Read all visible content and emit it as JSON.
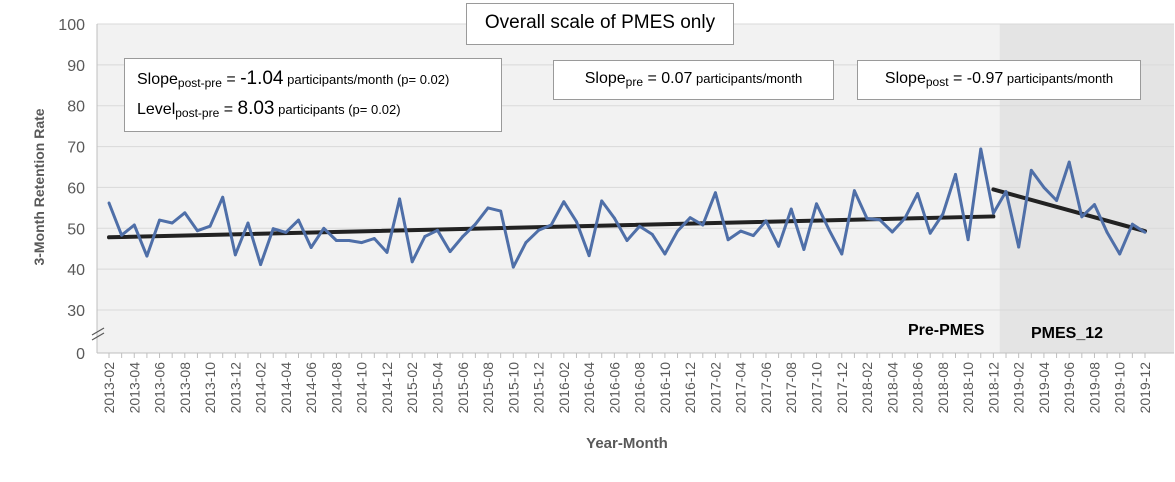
{
  "chart_data": {
    "type": "line",
    "title": "Overall scale of PMES only",
    "xlabel": "Year-Month",
    "ylabel": "3-Month Retention Rate",
    "ylim": [
      0,
      100
    ],
    "y_ticks": [
      "0",
      "30",
      "40",
      "50",
      "60",
      "70",
      "80",
      "90",
      "100"
    ],
    "axis_break": "between 0 and 30",
    "x": [
      "2013-02",
      "2013-03",
      "2013-04",
      "2013-05",
      "2013-06",
      "2013-07",
      "2013-08",
      "2013-09",
      "2013-10",
      "2013-11",
      "2013-12",
      "2014-01",
      "2014-02",
      "2014-03",
      "2014-04",
      "2014-05",
      "2014-06",
      "2014-07",
      "2014-08",
      "2014-09",
      "2014-10",
      "2014-11",
      "2014-12",
      "2015-01",
      "2015-02",
      "2015-03",
      "2015-04",
      "2015-05",
      "2015-06",
      "2015-07",
      "2015-08",
      "2015-09",
      "2015-10",
      "2015-11",
      "2015-12",
      "2016-01",
      "2016-02",
      "2016-03",
      "2016-04",
      "2016-05",
      "2016-06",
      "2016-07",
      "2016-08",
      "2016-09",
      "2016-10",
      "2016-11",
      "2016-12",
      "2017-01",
      "2017-02",
      "2017-03",
      "2017-04",
      "2017-05",
      "2017-06",
      "2017-07",
      "2017-08",
      "2017-09",
      "2017-10",
      "2017-11",
      "2017-12",
      "2018-01",
      "2018-02",
      "2018-03",
      "2018-04",
      "2018-05",
      "2018-06",
      "2018-07",
      "2018-08",
      "2018-09",
      "2018-10",
      "2018-11",
      "2018-12",
      "2019-01",
      "2019-02",
      "2019-03",
      "2019-04",
      "2019-05",
      "2019-06",
      "2019-07",
      "2019-08",
      "2019-09",
      "2019-10",
      "2019-11",
      "2019-12"
    ],
    "x_tick_labels": [
      "2013-02",
      "2013-04",
      "2013-06",
      "2013-08",
      "2013-10",
      "2013-12",
      "2014-02",
      "2014-04",
      "2014-06",
      "2014-08",
      "2014-10",
      "2014-12",
      "2015-02",
      "2015-04",
      "2015-06",
      "2015-08",
      "2015-10",
      "2015-12",
      "2016-02",
      "2016-04",
      "2016-06",
      "2016-08",
      "2016-10",
      "2016-12",
      "2017-02",
      "2017-04",
      "2017-06",
      "2017-08",
      "2017-10",
      "2017-12",
      "2018-02",
      "2018-04",
      "2018-06",
      "2018-08",
      "2018-10",
      "2018-12",
      "2019-02",
      "2019-04",
      "2019-06",
      "2019-08",
      "2019-10",
      "2019-12"
    ],
    "series": [
      {
        "color": "#4f6fa8",
        "values": [
          56.2,
          48.3,
          50.8,
          43.2,
          52,
          51.3,
          53.8,
          49.4,
          50.5,
          57.6,
          43.5,
          51.3,
          41.1,
          49.9,
          49,
          52,
          45.3,
          50,
          47,
          47,
          46.5,
          47.5,
          44.1,
          57.2,
          41.8,
          48,
          49.5,
          44.3,
          48,
          51,
          55,
          54.2,
          40.5,
          46.5,
          49.5,
          50.8,
          56.5,
          51.6,
          43.3,
          56.7,
          52.5,
          47,
          50.5,
          48.5,
          43.7,
          49.3,
          52.6,
          50.8,
          58.7,
          47.2,
          49.3,
          48.2,
          51.8,
          45.6,
          54.7,
          44.8,
          56,
          49.6,
          43.7,
          59.2,
          52.4,
          52.1,
          49.1,
          52.5,
          58.5,
          48.8,
          53.5,
          63.2,
          47.2,
          69.4,
          53.7,
          59,
          45.4,
          64.2,
          60,
          56.8,
          66.2,
          52.8,
          55.8,
          49,
          43.7,
          51,
          49
        ]
      }
    ],
    "trend_lines": [
      {
        "x_start": "2013-02",
        "x_end": "2018-12",
        "y_start": 47.8,
        "y_end": 52.9,
        "color": "#222222"
      },
      {
        "x_start": "2018-12",
        "x_end": "2019-12",
        "y_start": 59.5,
        "y_end": 49.3,
        "color": "#222222"
      }
    ],
    "post_period_start": "2019-01",
    "colors": {
      "plot_bg": "#f2f2f2",
      "post_bg": "#e4e4e4",
      "grid": "#d9d9d9",
      "axis_text": "#595959"
    },
    "annotations": {
      "slope_post_pre": {
        "lead": "Slope",
        "sub": "post-pre",
        "eq": " = ",
        "value": "-1.04",
        "unit": " participants/month",
        "p": " (p= 0.02)"
      },
      "level_post_pre": {
        "lead": "Level",
        "sub": "post-pre",
        "eq": " = ",
        "value": "8.03",
        "unit": " participants",
        "p": " (p= 0.02)"
      },
      "slope_pre": {
        "lead": "Slope",
        "sub": "pre",
        "eq": " = 0.07",
        "unit": " participants/month"
      },
      "slope_post": {
        "lead": "Slope",
        "sub": "post",
        "eq": " = -0.97",
        "unit": " participants/month"
      }
    },
    "period_labels": {
      "pre": "Pre-PMES",
      "post": "PMES_12"
    }
  }
}
